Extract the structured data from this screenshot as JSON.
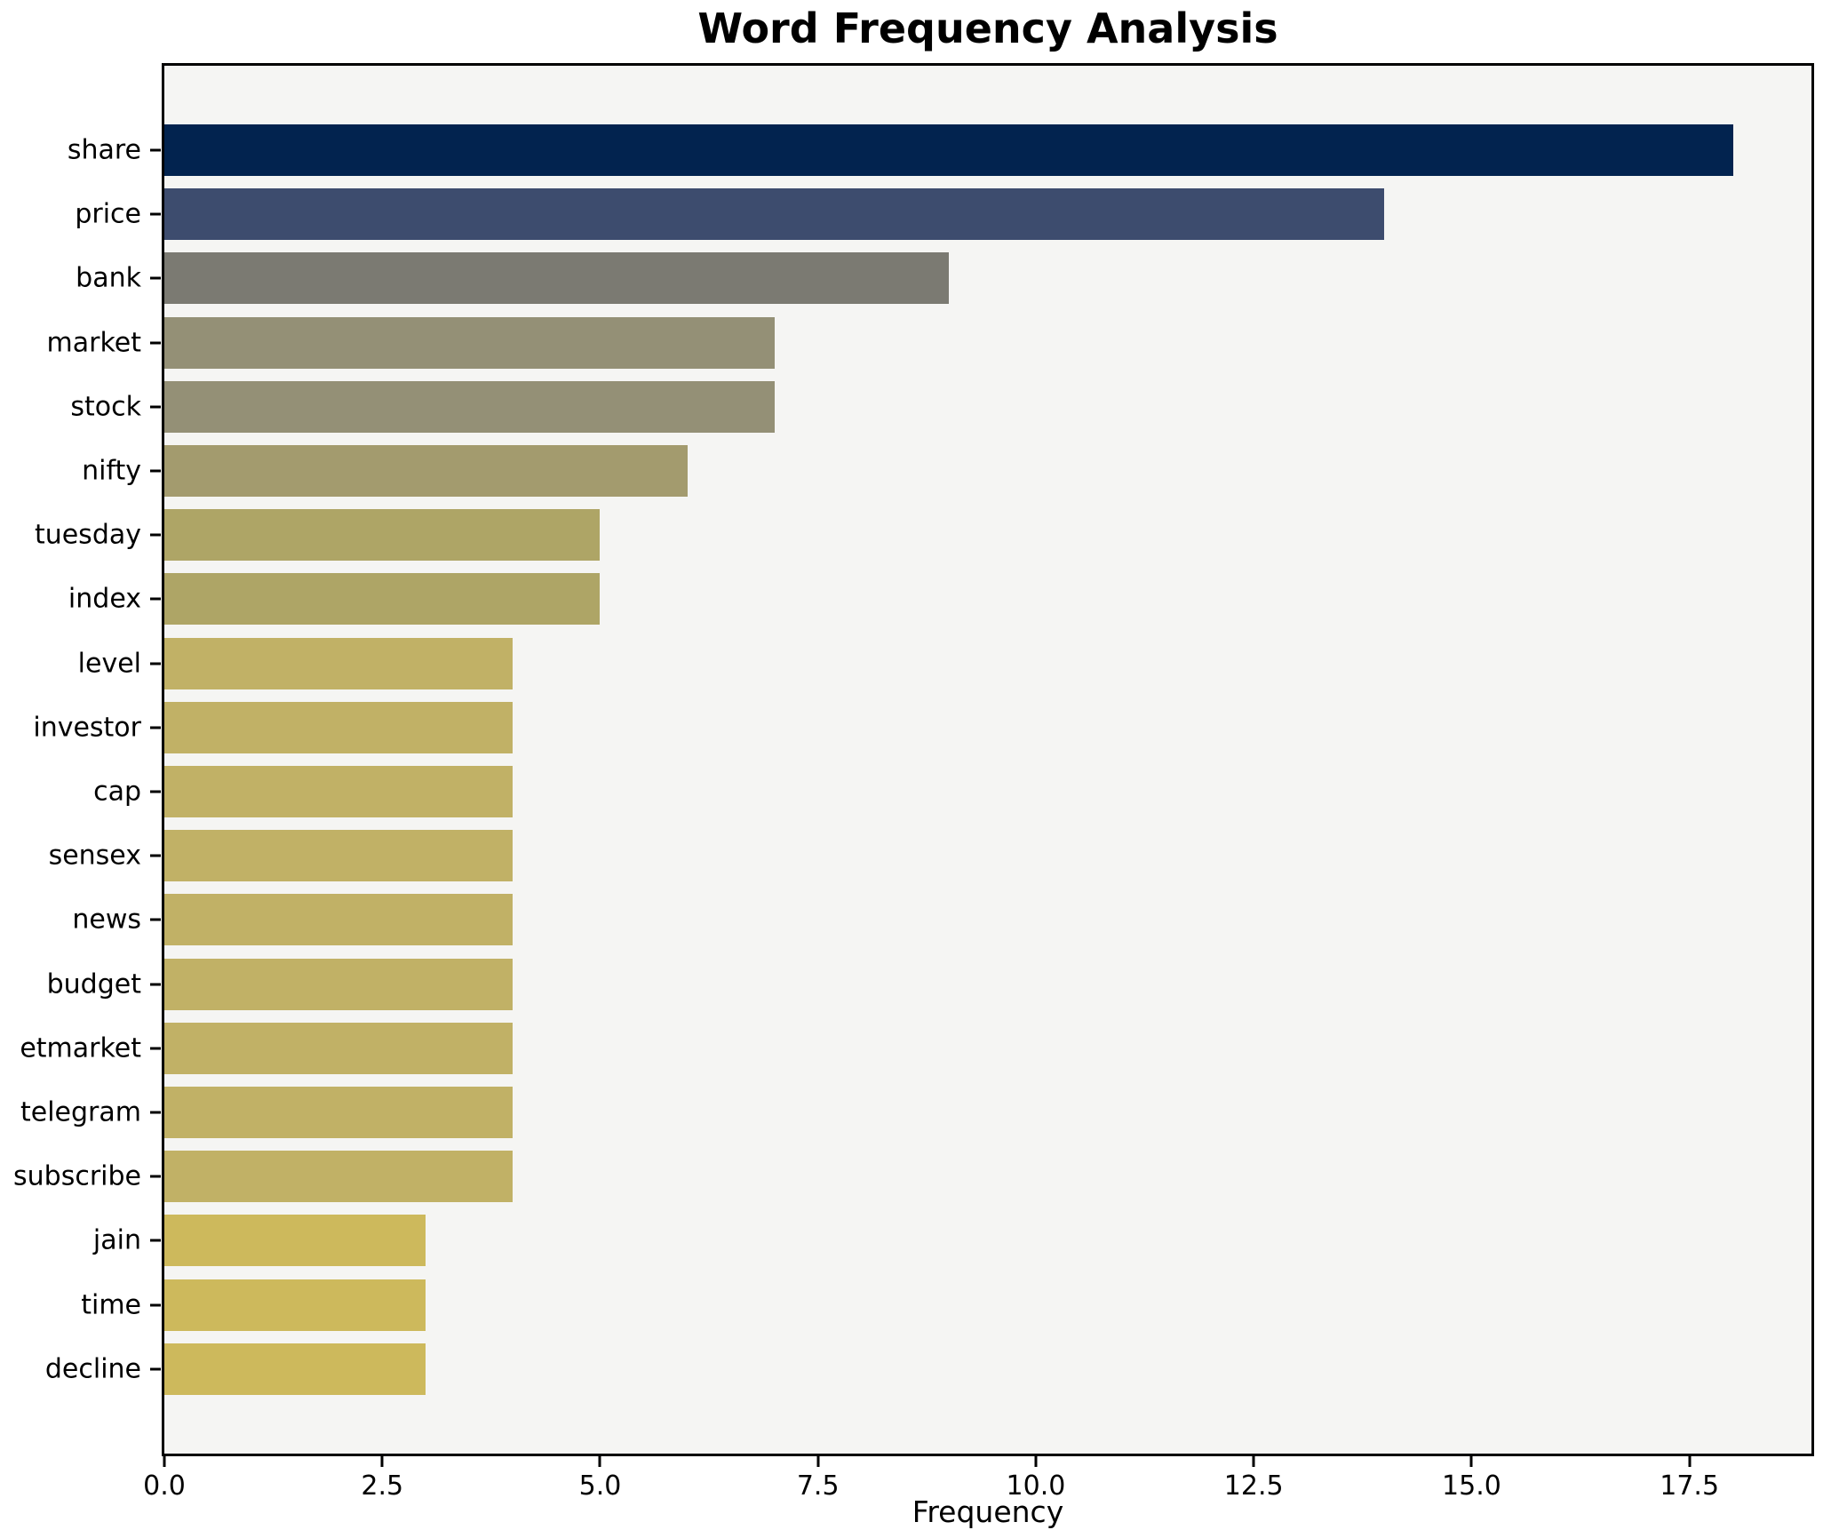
{
  "chart_data": {
    "type": "bar",
    "orientation": "horizontal",
    "title": "Word Frequency Analysis",
    "xlabel": "Frequency",
    "ylabel": "",
    "categories": [
      "share",
      "price",
      "bank",
      "market",
      "stock",
      "nifty",
      "tuesday",
      "index",
      "level",
      "investor",
      "cap",
      "sensex",
      "news",
      "budget",
      "etmarket",
      "telegram",
      "subscribe",
      "jain",
      "time",
      "decline"
    ],
    "values": [
      18,
      14,
      9,
      7,
      7,
      6,
      5,
      5,
      4,
      4,
      4,
      4,
      4,
      4,
      4,
      4,
      4,
      3,
      3,
      3
    ],
    "bar_colors": [
      "#02234f",
      "#3d4c6e",
      "#7b7a72",
      "#949076",
      "#949076",
      "#a39b6e",
      "#aea566",
      "#aea566",
      "#c1b166",
      "#c1b166",
      "#c1b166",
      "#c1b166",
      "#c1b166",
      "#c1b166",
      "#c1b166",
      "#c1b166",
      "#c1b166",
      "#cdb95c",
      "#cdb95c",
      "#cdb95c"
    ],
    "xlim": [
      0,
      18.9
    ],
    "xticks": [
      {
        "value": 0,
        "label": "0.0"
      },
      {
        "value": 2.5,
        "label": "2.5"
      },
      {
        "value": 5,
        "label": "5.0"
      },
      {
        "value": 7.5,
        "label": "7.5"
      },
      {
        "value": 10,
        "label": "10.0"
      },
      {
        "value": 12.5,
        "label": "12.5"
      },
      {
        "value": 15,
        "label": "15.0"
      },
      {
        "value": 17.5,
        "label": "17.5"
      }
    ],
    "grid": false,
    "legend": false,
    "plot_background": "#f5f5f3",
    "figure_background": "#ffffff",
    "spine_color": "#000000"
  }
}
